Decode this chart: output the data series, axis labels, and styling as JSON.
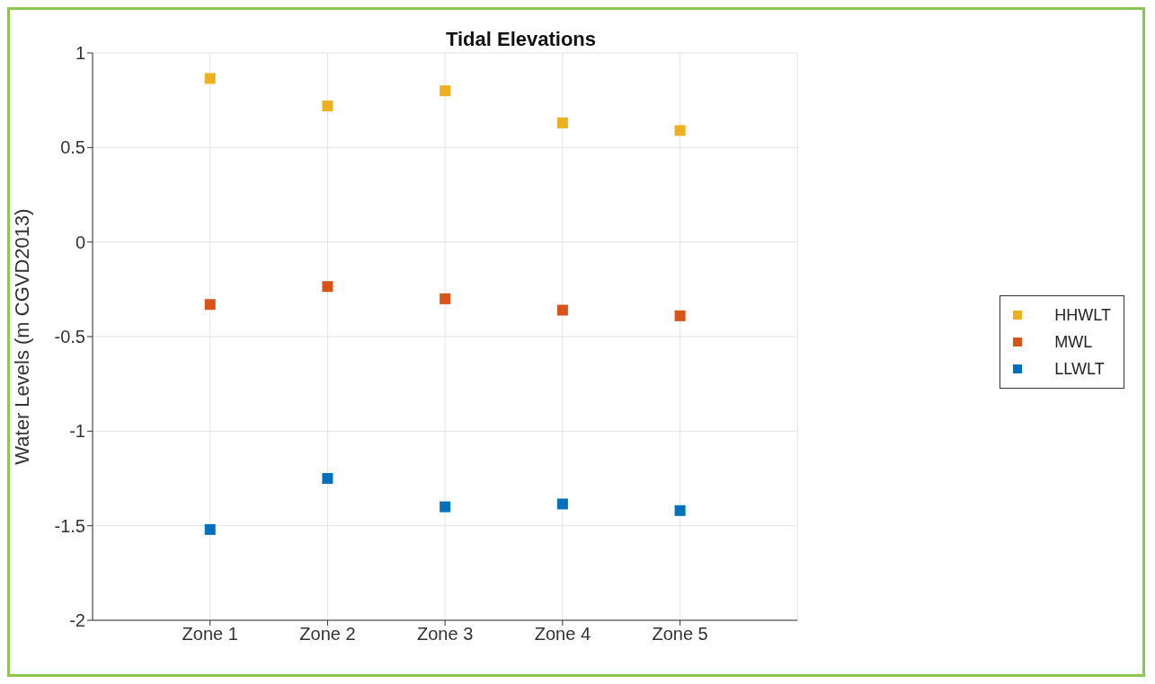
{
  "chart_data": {
    "type": "scatter",
    "title": "Tidal Elevations",
    "ylabel": "Water Levels (m CGVD2013)",
    "categories": [
      "Zone 1",
      "Zone 2",
      "Zone 3",
      "Zone 4",
      "Zone 5"
    ],
    "series": [
      {
        "name": "HHWLT",
        "color": "#edb120",
        "values": [
          0.865,
          0.72,
          0.8,
          0.63,
          0.59
        ]
      },
      {
        "name": "MWL",
        "color": "#d95319",
        "values": [
          -0.33,
          -0.235,
          -0.3,
          -0.36,
          -0.39
        ]
      },
      {
        "name": "LLWLT",
        "color": "#0072bd",
        "values": [
          -1.52,
          -1.25,
          -1.4,
          -1.385,
          -1.42
        ]
      }
    ],
    "ylim": [
      -2,
      1
    ],
    "yticks": [
      -2,
      -1.5,
      -1,
      -0.5,
      0,
      0.5,
      1
    ],
    "grid": true,
    "legend": "right",
    "marker": "square"
  }
}
